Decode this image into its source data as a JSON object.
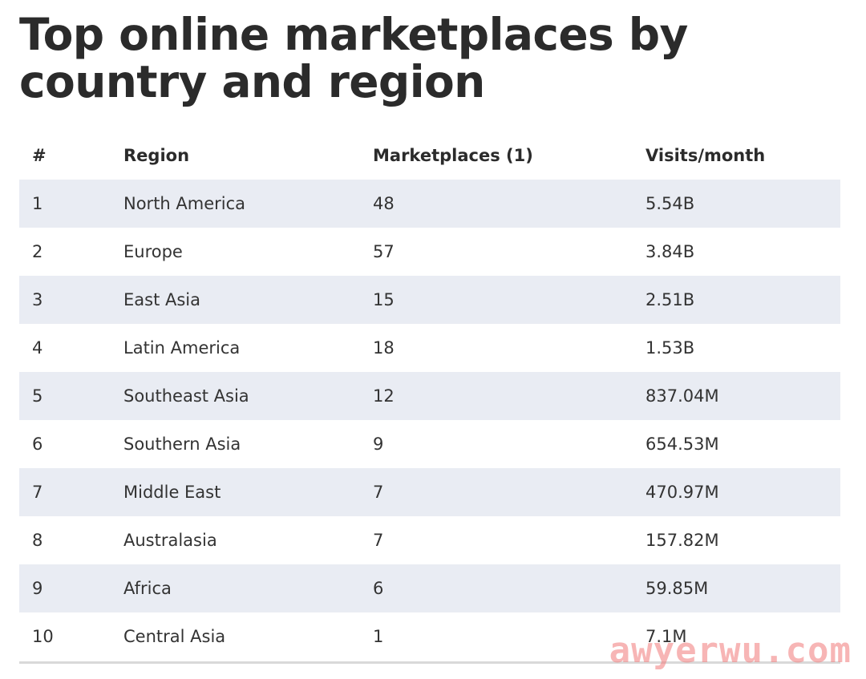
{
  "title": "Top online marketplaces by country and region",
  "watermark": "awyerwu.com",
  "colors": {
    "stripe": "#e9ecf3",
    "text": "#2f2f2f",
    "watermark": "#f07878"
  },
  "chart_data": {
    "type": "table",
    "title": "Top online marketplaces by country and region",
    "columns": [
      "#",
      "Region",
      "Marketplaces (1)",
      "Visits/month"
    ],
    "rows": [
      [
        "1",
        "North America",
        "48",
        "5.54B"
      ],
      [
        "2",
        "Europe",
        "57",
        "3.84B"
      ],
      [
        "3",
        "East Asia",
        "15",
        "2.51B"
      ],
      [
        "4",
        "Latin America",
        "18",
        "1.53B"
      ],
      [
        "5",
        "Southeast Asia",
        "12",
        "837.04M"
      ],
      [
        "6",
        "Southern Asia",
        "9",
        "654.53M"
      ],
      [
        "7",
        "Middle East",
        "7",
        "470.97M"
      ],
      [
        "8",
        "Australasia",
        "7",
        "157.82M"
      ],
      [
        "9",
        "Africa",
        "6",
        "59.85M"
      ],
      [
        "10",
        "Central Asia",
        "1",
        "7.1M"
      ]
    ]
  }
}
